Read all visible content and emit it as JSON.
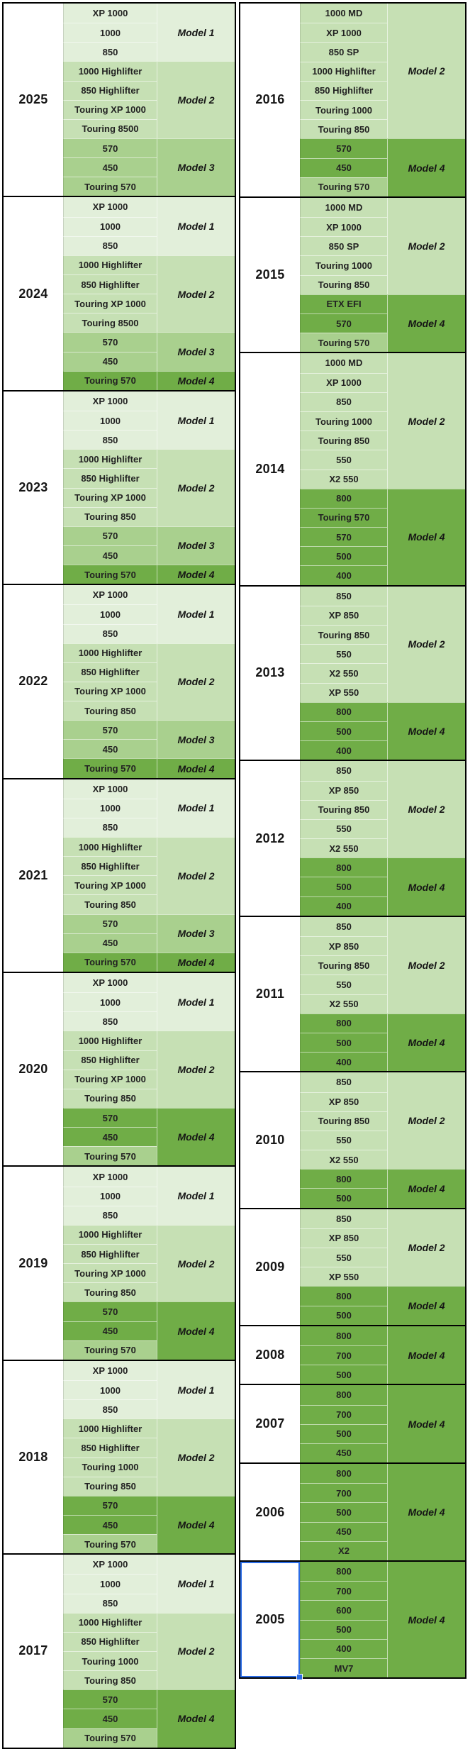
{
  "colors": {
    "shade1": "#e2efda",
    "shade2": "#c6e0b4",
    "shade3": "#a9d08e",
    "shade4": "#70ad47",
    "border": "#000000",
    "selection": "#2b6ce6",
    "text": "#222222"
  },
  "tables": [
    {
      "id": "left",
      "blocks": [
        {
          "year": "2025",
          "groups": [
            {
              "label": "Model 1",
              "shade": "shade1",
              "models": [
                "XP 1000",
                "1000",
                "850"
              ]
            },
            {
              "label": "Model 2",
              "shade": "shade2",
              "models": [
                "1000 Highlifter",
                "850 Highlifter",
                "Touring XP 1000",
                "Touring 8500"
              ]
            },
            {
              "label": "Model 3",
              "shade": "shade3",
              "models": [
                "570",
                "450",
                "Touring 570"
              ]
            }
          ]
        },
        {
          "year": "2024",
          "groups": [
            {
              "label": "Model 1",
              "shade": "shade1",
              "models": [
                "XP 1000",
                "1000",
                "850"
              ]
            },
            {
              "label": "Model 2",
              "shade": "shade2",
              "models": [
                "1000 Highlifter",
                "850 Highlifter",
                "Touring XP 1000",
                "Touring 8500"
              ]
            },
            {
              "label": "Model 3",
              "shade": "shade3",
              "models": [
                "570",
                "450"
              ]
            },
            {
              "label": "Model 4",
              "shade": "shade4",
              "models": [
                "Touring 570"
              ]
            }
          ]
        },
        {
          "year": "2023",
          "groups": [
            {
              "label": "Model 1",
              "shade": "shade1",
              "models": [
                "XP 1000",
                "1000",
                "850"
              ]
            },
            {
              "label": "Model 2",
              "shade": "shade2",
              "models": [
                "1000 Highlifter",
                "850 Highlifter",
                "Touring XP 1000",
                "Touring 850"
              ]
            },
            {
              "label": "Model 3",
              "shade": "shade3",
              "models": [
                "570",
                "450"
              ]
            },
            {
              "label": "Model 4",
              "shade": "shade4",
              "models": [
                "Touring 570"
              ]
            }
          ]
        },
        {
          "year": "2022",
          "groups": [
            {
              "label": "Model 1",
              "shade": "shade1",
              "models": [
                "XP 1000",
                "1000",
                "850"
              ]
            },
            {
              "label": "Model 2",
              "shade": "shade2",
              "models": [
                "1000 Highlifter",
                "850 Highlifter",
                "Touring XP 1000",
                "Touring 850"
              ]
            },
            {
              "label": "Model 3",
              "shade": "shade3",
              "models": [
                "570",
                "450"
              ]
            },
            {
              "label": "Model 4",
              "shade": "shade4",
              "models": [
                "Touring 570"
              ]
            }
          ]
        },
        {
          "year": "2021",
          "groups": [
            {
              "label": "Model 1",
              "shade": "shade1",
              "models": [
                "XP 1000",
                "1000",
                "850"
              ]
            },
            {
              "label": "Model 2",
              "shade": "shade2",
              "models": [
                "1000 Highlifter",
                "850 Highlifter",
                "Touring XP 1000",
                "Touring 850"
              ]
            },
            {
              "label": "Model 3",
              "shade": "shade3",
              "models": [
                "570",
                "450"
              ]
            },
            {
              "label": "Model 4",
              "shade": "shade4",
              "models": [
                "Touring 570"
              ]
            }
          ]
        },
        {
          "year": "2020",
          "groups": [
            {
              "label": "Model 1",
              "shade": "shade1",
              "models": [
                "XP 1000",
                "1000",
                "850"
              ]
            },
            {
              "label": "Model 2",
              "shade": "shade2",
              "models": [
                "1000 Highlifter",
                "850 Highlifter",
                "Touring XP 1000",
                "Touring 850"
              ]
            },
            {
              "label": "Model 4",
              "shade": "shade4",
              "models": [
                "570",
                "450",
                {
                  "name": "Touring 570",
                  "shade": "shade3"
                }
              ]
            }
          ]
        },
        {
          "year": "2019",
          "groups": [
            {
              "label": "Model 1",
              "shade": "shade1",
              "models": [
                "XP 1000",
                "1000",
                "850"
              ]
            },
            {
              "label": "Model 2",
              "shade": "shade2",
              "models": [
                "1000 Highlifter",
                "850 Highlifter",
                "Touring XP 1000",
                "Touring 850"
              ]
            },
            {
              "label": "Model 4",
              "shade": "shade4",
              "models": [
                "570",
                "450",
                {
                  "name": "Touring 570",
                  "shade": "shade3"
                }
              ]
            }
          ]
        },
        {
          "year": "2018",
          "groups": [
            {
              "label": "Model 1",
              "shade": "shade1",
              "models": [
                "XP 1000",
                "1000",
                "850"
              ]
            },
            {
              "label": "Model 2",
              "shade": "shade2",
              "models": [
                "1000 Highlifter",
                "850 Highlifter",
                "Touring 1000",
                "Touring 850"
              ]
            },
            {
              "label": "Model 4",
              "shade": "shade4",
              "models": [
                "570",
                "450",
                {
                  "name": "Touring 570",
                  "shade": "shade3"
                }
              ]
            }
          ]
        },
        {
          "year": "2017",
          "groups": [
            {
              "label": "Model 1",
              "shade": "shade1",
              "models": [
                "XP 1000",
                "1000",
                "850"
              ]
            },
            {
              "label": "Model 2",
              "shade": "shade2",
              "models": [
                "1000 Highlifter",
                "850 Highlifter",
                "Touring 1000",
                "Touring 850"
              ]
            },
            {
              "label": "Model 4",
              "shade": "shade4",
              "models": [
                "570",
                "450",
                {
                  "name": "Touring 570",
                  "shade": "shade3"
                }
              ]
            }
          ]
        }
      ]
    },
    {
      "id": "right",
      "blocks": [
        {
          "year": "2016",
          "groups": [
            {
              "label": "Model 2",
              "shade": "shade2",
              "models": [
                "1000 MD",
                "XP 1000",
                "850 SP",
                "1000 Highlifter",
                "850 Highlifter",
                "Touring 1000",
                "Touring 850"
              ]
            },
            {
              "label": "Model 4",
              "shade": "shade4",
              "models": [
                "570",
                "450",
                {
                  "name": "Touring 570",
                  "shade": "shade3"
                }
              ]
            }
          ]
        },
        {
          "year": "2015",
          "groups": [
            {
              "label": "Model 2",
              "shade": "shade2",
              "models": [
                "1000 MD",
                "XP 1000",
                "850 SP",
                "Touring 1000",
                "Touring 850"
              ]
            },
            {
              "label": "Model 4",
              "shade": "shade4",
              "models": [
                "ETX EFI",
                "570",
                {
                  "name": "Touring 570",
                  "shade": "shade3"
                }
              ]
            }
          ]
        },
        {
          "year": "2014",
          "groups": [
            {
              "label": "Model 2",
              "shade": "shade2",
              "models": [
                "1000 MD",
                "XP 1000",
                "850",
                "Touring 1000",
                "Touring 850",
                "550",
                "X2 550"
              ]
            },
            {
              "label": "Model 4",
              "shade": "shade4",
              "models": [
                "800",
                "Touring 570",
                "570",
                "500",
                "400"
              ]
            }
          ]
        },
        {
          "year": "2013",
          "groups": [
            {
              "label": "Model 2",
              "shade": "shade2",
              "models": [
                "850",
                "XP 850",
                "Touring 850",
                "550",
                "X2 550",
                "XP 550"
              ]
            },
            {
              "label": "Model 4",
              "shade": "shade4",
              "models": [
                "800",
                "500",
                "400"
              ]
            }
          ]
        },
        {
          "year": "2012",
          "groups": [
            {
              "label": "Model 2",
              "shade": "shade2",
              "models": [
                "850",
                "XP 850",
                "Touring 850",
                "550",
                "X2 550"
              ]
            },
            {
              "label": "Model 4",
              "shade": "shade4",
              "models": [
                "800",
                "500",
                "400"
              ]
            }
          ]
        },
        {
          "year": "2011",
          "groups": [
            {
              "label": "Model 2",
              "shade": "shade2",
              "models": [
                "850",
                "XP 850",
                "Touring 850",
                "550",
                "X2 550"
              ]
            },
            {
              "label": "Model 4",
              "shade": "shade4",
              "models": [
                "800",
                "500",
                "400"
              ]
            }
          ]
        },
        {
          "year": "2010",
          "groups": [
            {
              "label": "Model 2",
              "shade": "shade2",
              "models": [
                "850",
                "XP 850",
                "Touring 850",
                "550",
                "X2 550"
              ]
            },
            {
              "label": "Model 4",
              "shade": "shade4",
              "models": [
                "800",
                "500"
              ]
            }
          ]
        },
        {
          "year": "2009",
          "groups": [
            {
              "label": "Model 2",
              "shade": "shade2",
              "models": [
                "850",
                "XP 850",
                "550",
                "XP 550"
              ]
            },
            {
              "label": "Model 4",
              "shade": "shade4",
              "models": [
                "800",
                "500"
              ]
            }
          ]
        },
        {
          "year": "2008",
          "groups": [
            {
              "label": "Model 4",
              "shade": "shade4",
              "models": [
                "800",
                "700",
                "500"
              ]
            }
          ]
        },
        {
          "year": "2007",
          "groups": [
            {
              "label": "Model 4",
              "shade": "shade4",
              "models": [
                "800",
                "700",
                "500",
                "450"
              ]
            }
          ]
        },
        {
          "year": "2006",
          "groups": [
            {
              "label": "Model 4",
              "shade": "shade4",
              "models": [
                "800",
                "700",
                "500",
                "450",
                "X2"
              ]
            }
          ]
        },
        {
          "year": "2005",
          "selected": true,
          "groups": [
            {
              "label": "Model 4",
              "shade": "shade4",
              "models": [
                "800",
                "700",
                "600",
                "500",
                "400",
                "MV7"
              ]
            }
          ]
        }
      ]
    }
  ]
}
